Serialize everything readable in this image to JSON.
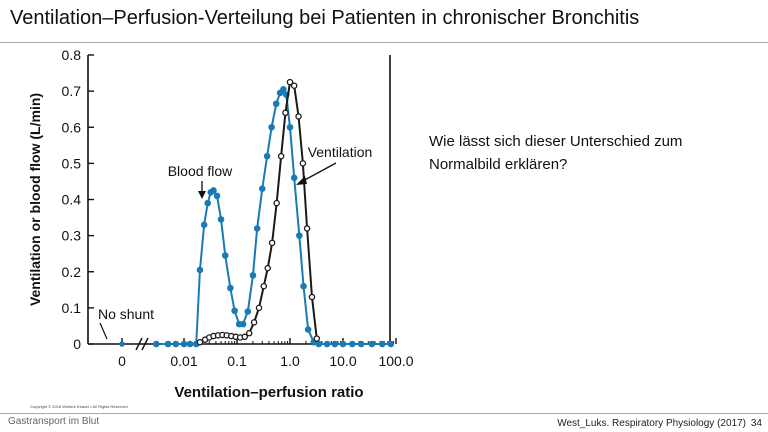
{
  "slide": {
    "title": "Ventilation–Perfusion-Verteilung bei Patienten in chronischer Bronchitis",
    "question": "Wie lässt sich dieser Unterschied zum Normalbild erklären?",
    "copyright": "Copyright © 2018 Wolters Kluwer • All Rights Reserved",
    "footer_left": "Gastransport im Blut",
    "footer_right": "West_Luks. Respiratory Physiology (2017)",
    "page_number": "34"
  },
  "colors": {
    "blood_flow": "#1a7ab5",
    "ventilation": "#1a1a1a",
    "axis": "#111111"
  },
  "chart_data": {
    "type": "line",
    "xlabel": "Ventilation–perfusion ratio",
    "ylabel": "Ventilation or blood flow (L/min)",
    "x_scale": "log",
    "x_ticks": [
      "0",
      "0.01",
      "0.1",
      "1.0",
      "10.0",
      "100.0"
    ],
    "y_ticks": [
      "0",
      "0.1",
      "0.2",
      "0.3",
      "0.4",
      "0.5",
      "0.6",
      "0.7",
      "0.8"
    ],
    "ylim": [
      0,
      0.8
    ],
    "annotations": [
      "Blood flow",
      "Ventilation",
      "No shunt"
    ],
    "shunt_points": [
      {
        "x": 0,
        "y": 0
      }
    ],
    "series": [
      {
        "name": "Blood flow",
        "marker": "filled-circle",
        "x": [
          0.003,
          0.005,
          0.007,
          0.01,
          0.013,
          0.017,
          0.02,
          0.024,
          0.028,
          0.032,
          0.036,
          0.042,
          0.05,
          0.06,
          0.075,
          0.09,
          0.11,
          0.13,
          0.16,
          0.2,
          0.24,
          0.3,
          0.37,
          0.45,
          0.55,
          0.65,
          0.75,
          0.85,
          1.0,
          1.2,
          1.5,
          1.8,
          2.2,
          2.8,
          3.5,
          5,
          7,
          10,
          15,
          22,
          35,
          55,
          80
        ],
        "y": [
          0,
          0,
          0,
          0,
          0,
          0.0,
          0.205,
          0.33,
          0.39,
          0.42,
          0.425,
          0.41,
          0.345,
          0.245,
          0.155,
          0.092,
          0.055,
          0.055,
          0.09,
          0.19,
          0.32,
          0.43,
          0.52,
          0.6,
          0.665,
          0.695,
          0.705,
          0.69,
          0.6,
          0.46,
          0.3,
          0.16,
          0.04,
          0.005,
          0,
          0,
          0,
          0,
          0,
          0,
          0,
          0,
          0
        ]
      },
      {
        "name": "Ventilation",
        "marker": "open-circle",
        "x": [
          0.02,
          0.025,
          0.03,
          0.036,
          0.044,
          0.053,
          0.064,
          0.078,
          0.095,
          0.115,
          0.14,
          0.17,
          0.21,
          0.26,
          0.32,
          0.38,
          0.46,
          0.56,
          0.68,
          0.82,
          1.0,
          1.2,
          1.45,
          1.75,
          2.1,
          2.6,
          3.2
        ],
        "y": [
          0.005,
          0.012,
          0.018,
          0.022,
          0.024,
          0.025,
          0.024,
          0.022,
          0.02,
          0.018,
          0.02,
          0.03,
          0.06,
          0.1,
          0.16,
          0.21,
          0.28,
          0.39,
          0.52,
          0.64,
          0.725,
          0.715,
          0.63,
          0.5,
          0.32,
          0.13,
          0.015
        ]
      }
    ]
  }
}
